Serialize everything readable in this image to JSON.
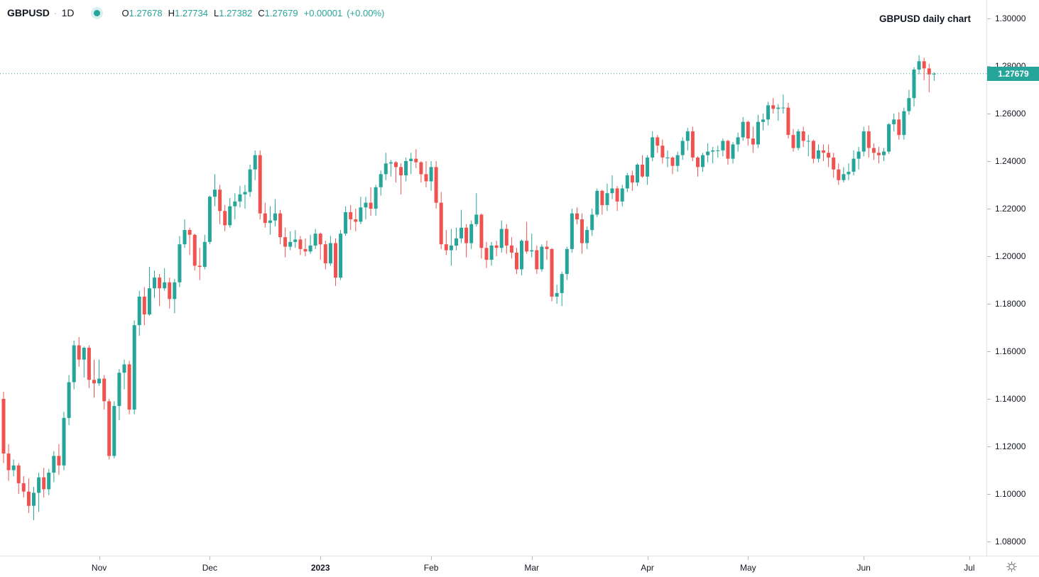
{
  "header": {
    "symbol": "GBPUSD",
    "separator": "·",
    "interval": "1D",
    "ohlc": {
      "o_label": "O",
      "o": "1.27678",
      "h_label": "H",
      "h": "1.27734",
      "l_label": "L",
      "l": "1.27382",
      "c_label": "C",
      "c": "1.27679",
      "change": "+0.00001",
      "change_pct": "(+0.00%)"
    }
  },
  "chart_title": "GBPUSD daily chart",
  "colors": {
    "up": "#26a69a",
    "down": "#ef5350",
    "last_price_line": "#26a69a",
    "badge_bg": "#26a69a",
    "badge_text": "#ffffff",
    "axis_text": "#131722",
    "axis_border": "#e0e3eb",
    "tick": "#b2b5be",
    "icon": "#787b86"
  },
  "chart_data": {
    "type": "candlestick",
    "symbol": "GBPUSD",
    "timeframe": "1D",
    "title": "GBPUSD daily chart",
    "current": {
      "open": 1.27678,
      "high": 1.27734,
      "low": 1.27382,
      "close": 1.27679,
      "change": "+0.00001",
      "change_pct": "+0.00%"
    },
    "last_price": 1.27679,
    "last_price_label": "1.27679",
    "ylim": [
      1.074,
      1.308
    ],
    "grid": "off",
    "y_ticks": [
      {
        "price": 1.3,
        "label": "1.30000"
      },
      {
        "price": 1.28,
        "label": "1.28000"
      },
      {
        "price": 1.26,
        "label": "1.26000"
      },
      {
        "price": 1.24,
        "label": "1.24000"
      },
      {
        "price": 1.22,
        "label": "1.22000"
      },
      {
        "price": 1.2,
        "label": "1.20000"
      },
      {
        "price": 1.18,
        "label": "1.18000"
      },
      {
        "price": 1.16,
        "label": "1.16000"
      },
      {
        "price": 1.14,
        "label": "1.14000"
      },
      {
        "price": 1.12,
        "label": "1.12000"
      },
      {
        "price": 1.1,
        "label": "1.10000"
      },
      {
        "price": 1.08,
        "label": "1.08000"
      }
    ],
    "x_ticks": [
      {
        "label": "Nov",
        "bar": 19,
        "bold": false
      },
      {
        "label": "Dec",
        "bar": 41,
        "bold": false
      },
      {
        "label": "2023",
        "bar": 63,
        "bold": true
      },
      {
        "label": "Feb",
        "bar": 85,
        "bold": false
      },
      {
        "label": "Mar",
        "bar": 105,
        "bold": false
      },
      {
        "label": "Apr",
        "bar": 128,
        "bold": false
      },
      {
        "label": "May",
        "bar": 148,
        "bold": false
      },
      {
        "label": "Jun",
        "bar": 171,
        "bold": false
      },
      {
        "label": "Jul",
        "bar": 192,
        "bold": false
      }
    ],
    "candles": [
      [
        1.14,
        1.143,
        1.113,
        1.117
      ],
      [
        1.117,
        1.121,
        1.1055,
        1.11
      ],
      [
        1.11,
        1.1145,
        1.1075,
        1.112
      ],
      [
        1.112,
        1.113,
        1.1,
        1.1045
      ],
      [
        1.1045,
        1.1075,
        1.0985,
        1.101
      ],
      [
        1.101,
        1.1065,
        1.092,
        1.095
      ],
      [
        1.095,
        1.103,
        1.089,
        1.1005
      ],
      [
        1.1005,
        1.109,
        1.0925,
        1.107
      ],
      [
        1.107,
        1.111,
        1.0985,
        1.102
      ],
      [
        1.102,
        1.1105,
        1.0995,
        1.109
      ],
      [
        1.109,
        1.118,
        1.105,
        1.116
      ],
      [
        1.116,
        1.121,
        1.108,
        1.112
      ],
      [
        1.112,
        1.1345,
        1.11,
        1.132
      ],
      [
        1.132,
        1.15,
        1.129,
        1.147
      ],
      [
        1.147,
        1.1645,
        1.144,
        1.1625
      ],
      [
        1.1625,
        1.166,
        1.1535,
        1.1565
      ],
      [
        1.1565,
        1.162,
        1.149,
        1.1615
      ],
      [
        1.1615,
        1.1625,
        1.1445,
        1.148
      ],
      [
        1.148,
        1.1565,
        1.1405,
        1.1465
      ],
      [
        1.1465,
        1.1565,
        1.1455,
        1.1485
      ],
      [
        1.1485,
        1.15,
        1.1355,
        1.139
      ],
      [
        1.139,
        1.14,
        1.1145,
        1.116
      ],
      [
        1.116,
        1.139,
        1.115,
        1.137
      ],
      [
        1.137,
        1.1525,
        1.131,
        1.151
      ],
      [
        1.151,
        1.1565,
        1.144,
        1.1545
      ],
      [
        1.1545,
        1.156,
        1.1335,
        1.1355
      ],
      [
        1.1355,
        1.173,
        1.1335,
        1.171
      ],
      [
        1.171,
        1.1855,
        1.1665,
        1.183
      ],
      [
        1.183,
        1.187,
        1.171,
        1.1755
      ],
      [
        1.1755,
        1.1955,
        1.175,
        1.1865
      ],
      [
        1.1865,
        1.194,
        1.1825,
        1.191
      ],
      [
        1.191,
        1.1925,
        1.179,
        1.1865
      ],
      [
        1.1865,
        1.195,
        1.1855,
        1.189
      ],
      [
        1.189,
        1.191,
        1.178,
        1.182
      ],
      [
        1.182,
        1.1905,
        1.176,
        1.189
      ],
      [
        1.189,
        1.2085,
        1.187,
        1.205
      ],
      [
        1.205,
        1.2155,
        1.2035,
        1.211
      ],
      [
        1.211,
        1.212,
        1.2005,
        1.209
      ],
      [
        1.209,
        1.2095,
        1.194,
        1.196
      ],
      [
        1.196,
        1.2035,
        1.19,
        1.1955
      ],
      [
        1.1955,
        1.209,
        1.1945,
        1.206
      ],
      [
        1.206,
        1.2255,
        1.205,
        1.225
      ],
      [
        1.225,
        1.2345,
        1.221,
        1.228
      ],
      [
        1.228,
        1.23,
        1.2135,
        1.219
      ],
      [
        1.219,
        1.2215,
        1.2105,
        1.213
      ],
      [
        1.213,
        1.2245,
        1.212,
        1.221
      ],
      [
        1.221,
        1.2265,
        1.2155,
        1.223
      ],
      [
        1.223,
        1.2295,
        1.2205,
        1.226
      ],
      [
        1.226,
        1.23,
        1.22,
        1.227
      ],
      [
        1.227,
        1.2385,
        1.225,
        1.2365
      ],
      [
        1.2365,
        1.2445,
        1.232,
        1.2425
      ],
      [
        1.2425,
        1.2445,
        1.2155,
        1.218
      ],
      [
        1.218,
        1.2225,
        1.212,
        1.214
      ],
      [
        1.214,
        1.221,
        1.209,
        1.215
      ],
      [
        1.215,
        1.224,
        1.2125,
        1.218
      ],
      [
        1.218,
        1.2195,
        1.205,
        1.208
      ],
      [
        1.208,
        1.212,
        1.1995,
        1.204
      ],
      [
        1.204,
        1.2105,
        1.2025,
        1.206
      ],
      [
        1.206,
        1.211,
        1.2035,
        1.207
      ],
      [
        1.207,
        1.2085,
        1.2005,
        1.203
      ],
      [
        1.203,
        1.2075,
        1.2,
        1.202
      ],
      [
        1.202,
        1.209,
        1.201,
        1.2045
      ],
      [
        1.2045,
        1.2115,
        1.203,
        1.2095
      ],
      [
        1.2095,
        1.21,
        1.1985,
        1.205
      ],
      [
        1.205,
        1.2065,
        1.1945,
        1.197
      ],
      [
        1.197,
        1.2085,
        1.196,
        1.2055
      ],
      [
        1.2055,
        1.2075,
        1.1875,
        1.191
      ],
      [
        1.191,
        1.211,
        1.19,
        1.2095
      ],
      [
        1.2095,
        1.221,
        1.2085,
        1.2185
      ],
      [
        1.2185,
        1.2215,
        1.211,
        1.2155
      ],
      [
        1.2155,
        1.22,
        1.2105,
        1.2145
      ],
      [
        1.2145,
        1.225,
        1.2135,
        1.2205
      ],
      [
        1.2205,
        1.225,
        1.2155,
        1.2225
      ],
      [
        1.2225,
        1.229,
        1.217,
        1.22
      ],
      [
        1.22,
        1.23,
        1.217,
        1.229
      ],
      [
        1.229,
        1.236,
        1.2255,
        1.2345
      ],
      [
        1.2345,
        1.2435,
        1.232,
        1.239
      ],
      [
        1.239,
        1.2405,
        1.2335,
        1.2395
      ],
      [
        1.2395,
        1.24,
        1.231,
        1.2375
      ],
      [
        1.2375,
        1.239,
        1.226,
        1.234
      ],
      [
        1.234,
        1.2415,
        1.2315,
        1.24
      ],
      [
        1.24,
        1.2435,
        1.2345,
        1.241
      ],
      [
        1.241,
        1.245,
        1.237,
        1.2395
      ],
      [
        1.2395,
        1.24,
        1.231,
        1.2345
      ],
      [
        1.2345,
        1.24,
        1.229,
        1.2315
      ],
      [
        1.2315,
        1.24,
        1.2275,
        1.2375
      ],
      [
        1.2375,
        1.24,
        1.22,
        1.2225
      ],
      [
        1.2225,
        1.227,
        1.203,
        1.205
      ],
      [
        1.205,
        1.211,
        1.2005,
        1.2025
      ],
      [
        1.2025,
        1.2115,
        1.196,
        1.2045
      ],
      [
        1.2045,
        1.212,
        1.2025,
        1.2075
      ],
      [
        1.2075,
        1.2195,
        1.2055,
        1.212
      ],
      [
        1.212,
        1.2135,
        1.1995,
        1.2055
      ],
      [
        1.2055,
        1.215,
        1.203,
        1.2135
      ],
      [
        1.2135,
        1.2265,
        1.2125,
        1.2175
      ],
      [
        1.2175,
        1.218,
        1.199,
        1.2035
      ],
      [
        1.2035,
        1.206,
        1.195,
        1.1985
      ],
      [
        1.1985,
        1.206,
        1.196,
        1.2045
      ],
      [
        1.2045,
        1.2065,
        1.2,
        1.2035
      ],
      [
        1.2035,
        1.215,
        1.2015,
        1.2115
      ],
      [
        1.2115,
        1.2135,
        1.201,
        1.2045
      ],
      [
        1.2045,
        1.208,
        1.199,
        1.2015
      ],
      [
        1.2015,
        1.2035,
        1.1925,
        1.1945
      ],
      [
        1.1945,
        1.207,
        1.192,
        1.2065
      ],
      [
        1.2065,
        1.2145,
        1.201,
        1.202
      ],
      [
        1.202,
        1.2095,
        1.1995,
        1.2025
      ],
      [
        1.2025,
        1.2045,
        1.1925,
        1.1945
      ],
      [
        1.1945,
        1.205,
        1.1935,
        1.204
      ],
      [
        1.204,
        1.2065,
        1.1985,
        1.203
      ],
      [
        1.203,
        1.2035,
        1.181,
        1.183
      ],
      [
        1.183,
        1.188,
        1.18,
        1.1845
      ],
      [
        1.1845,
        1.1935,
        1.179,
        1.1925
      ],
      [
        1.1925,
        1.204,
        1.19,
        1.203
      ],
      [
        1.203,
        1.22,
        1.2015,
        1.218
      ],
      [
        1.218,
        1.2205,
        1.2135,
        1.2155
      ],
      [
        1.2155,
        1.218,
        1.201,
        1.2055
      ],
      [
        1.2055,
        1.2125,
        1.203,
        1.211
      ],
      [
        1.211,
        1.22,
        1.2085,
        1.2175
      ],
      [
        1.2175,
        1.2285,
        1.2165,
        1.2275
      ],
      [
        1.2275,
        1.228,
        1.2175,
        1.2215
      ],
      [
        1.2215,
        1.2305,
        1.219,
        1.2265
      ],
      [
        1.2265,
        1.234,
        1.224,
        1.2285
      ],
      [
        1.2285,
        1.2295,
        1.219,
        1.223
      ],
      [
        1.223,
        1.23,
        1.221,
        1.2285
      ],
      [
        1.2285,
        1.235,
        1.227,
        1.234
      ],
      [
        1.234,
        1.236,
        1.2275,
        1.231
      ],
      [
        1.231,
        1.239,
        1.2295,
        1.2385
      ],
      [
        1.2385,
        1.2425,
        1.233,
        1.2335
      ],
      [
        1.2335,
        1.2425,
        1.23,
        1.2415
      ],
      [
        1.2415,
        1.2525,
        1.24,
        1.25
      ],
      [
        1.25,
        1.251,
        1.2435,
        1.2465
      ],
      [
        1.2465,
        1.249,
        1.239,
        1.2415
      ],
      [
        1.2415,
        1.2445,
        1.2375,
        1.2415
      ],
      [
        1.2415,
        1.242,
        1.2345,
        1.238
      ],
      [
        1.238,
        1.244,
        1.2355,
        1.2425
      ],
      [
        1.2425,
        1.25,
        1.2405,
        1.2485
      ],
      [
        1.2485,
        1.254,
        1.2445,
        1.2525
      ],
      [
        1.2525,
        1.2545,
        1.24,
        1.2415
      ],
      [
        1.2415,
        1.242,
        1.2335,
        1.2375
      ],
      [
        1.2375,
        1.2435,
        1.2355,
        1.2425
      ],
      [
        1.2425,
        1.2475,
        1.2395,
        1.244
      ],
      [
        1.244,
        1.246,
        1.239,
        1.2445
      ],
      [
        1.2445,
        1.2465,
        1.2415,
        1.2445
      ],
      [
        1.2445,
        1.2495,
        1.242,
        1.2485
      ],
      [
        1.2485,
        1.249,
        1.2385,
        1.241
      ],
      [
        1.241,
        1.248,
        1.239,
        1.247
      ],
      [
        1.247,
        1.252,
        1.244,
        1.25
      ],
      [
        1.25,
        1.2585,
        1.2485,
        1.2565
      ],
      [
        1.2565,
        1.257,
        1.2465,
        1.2495
      ],
      [
        1.2495,
        1.2545,
        1.2435,
        1.247
      ],
      [
        1.247,
        1.2595,
        1.2455,
        1.2565
      ],
      [
        1.2565,
        1.26,
        1.253,
        1.2575
      ],
      [
        1.2575,
        1.265,
        1.255,
        1.2635
      ],
      [
        1.2635,
        1.2665,
        1.26,
        1.262
      ],
      [
        1.262,
        1.264,
        1.257,
        1.2625
      ],
      [
        1.2625,
        1.268,
        1.26,
        1.2625
      ],
      [
        1.2625,
        1.2645,
        1.2495,
        1.251
      ],
      [
        1.251,
        1.2535,
        1.244,
        1.2455
      ],
      [
        1.2455,
        1.2535,
        1.2445,
        1.2525
      ],
      [
        1.2525,
        1.2545,
        1.246,
        1.2485
      ],
      [
        1.2485,
        1.251,
        1.242,
        1.2485
      ],
      [
        1.2485,
        1.249,
        1.239,
        1.241
      ],
      [
        1.241,
        1.247,
        1.2395,
        1.2445
      ],
      [
        1.2445,
        1.247,
        1.24,
        1.2435
      ],
      [
        1.2435,
        1.247,
        1.2375,
        1.2415
      ],
      [
        1.2415,
        1.2435,
        1.233,
        1.2365
      ],
      [
        1.2365,
        1.239,
        1.23,
        1.232
      ],
      [
        1.232,
        1.2375,
        1.231,
        1.2345
      ],
      [
        1.2345,
        1.239,
        1.232,
        1.2355
      ],
      [
        1.2355,
        1.2445,
        1.234,
        1.241
      ],
      [
        1.241,
        1.246,
        1.2365,
        1.244
      ],
      [
        1.244,
        1.2545,
        1.242,
        1.2525
      ],
      [
        1.2525,
        1.255,
        1.2415,
        1.2455
      ],
      [
        1.2455,
        1.2475,
        1.2405,
        1.2435
      ],
      [
        1.2435,
        1.246,
        1.239,
        1.2425
      ],
      [
        1.2425,
        1.2455,
        1.24,
        1.244
      ],
      [
        1.244,
        1.256,
        1.243,
        1.2555
      ],
      [
        1.2555,
        1.26,
        1.2525,
        1.2575
      ],
      [
        1.2575,
        1.2605,
        1.249,
        1.251
      ],
      [
        1.251,
        1.2625,
        1.249,
        1.261
      ],
      [
        1.261,
        1.27,
        1.2595,
        1.2665
      ],
      [
        1.2665,
        1.2795,
        1.263,
        1.2785
      ],
      [
        1.2785,
        1.2845,
        1.2765,
        1.282
      ],
      [
        1.282,
        1.2835,
        1.274,
        1.279
      ],
      [
        1.279,
        1.281,
        1.269,
        1.2765
      ],
      [
        1.27678,
        1.27734,
        1.27382,
        1.27679
      ]
    ]
  }
}
